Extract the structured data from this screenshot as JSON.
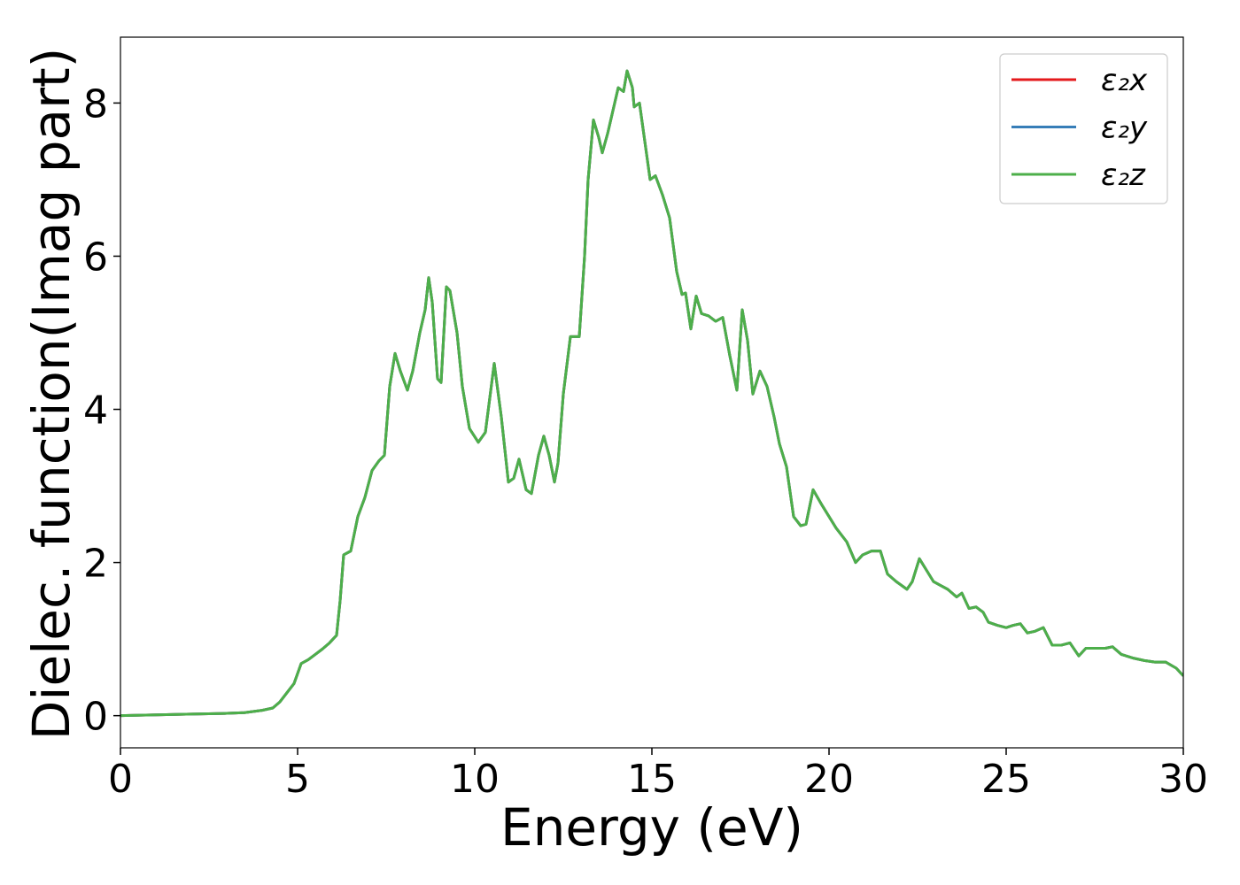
{
  "chart_data": {
    "type": "line",
    "xlabel": "Energy (eV)",
    "ylabel": "Dielec. function(Imag part)",
    "xlim": [
      0,
      30
    ],
    "ylim": [
      -0.42,
      8.86
    ],
    "xticks": [
      0,
      5,
      10,
      15,
      20,
      25,
      30
    ],
    "yticks": [
      0,
      2,
      4,
      6,
      8
    ],
    "legend": "upper right",
    "x": [
      0,
      1,
      2,
      3,
      3.5,
      4,
      4.3,
      4.5,
      4.7,
      4.9,
      5.1,
      5.3,
      5.5,
      5.7,
      5.9,
      6.1,
      6.2,
      6.3,
      6.5,
      6.7,
      6.9,
      7.1,
      7.3,
      7.45,
      7.6,
      7.75,
      7.9,
      8.1,
      8.25,
      8.45,
      8.6,
      8.7,
      8.8,
      8.95,
      9.05,
      9.2,
      9.3,
      9.5,
      9.65,
      9.85,
      10.1,
      10.3,
      10.55,
      10.75,
      10.95,
      11.1,
      11.25,
      11.45,
      11.6,
      11.8,
      11.95,
      12.1,
      12.25,
      12.35,
      12.5,
      12.7,
      12.85,
      12.95,
      13.1,
      13.2,
      13.35,
      13.5,
      13.6,
      13.75,
      13.9,
      14.05,
      14.2,
      14.3,
      14.45,
      14.5,
      14.65,
      14.8,
      14.95,
      15.1,
      15.3,
      15.5,
      15.7,
      15.85,
      15.95,
      16.1,
      16.25,
      16.4,
      16.6,
      16.8,
      17.0,
      17.2,
      17.4,
      17.55,
      17.7,
      17.85,
      18.05,
      18.25,
      18.45,
      18.6,
      18.8,
      19.0,
      19.2,
      19.35,
      19.55,
      19.8,
      20.0,
      20.2,
      20.5,
      20.75,
      20.95,
      21.2,
      21.45,
      21.65,
      21.9,
      22.2,
      22.35,
      22.55,
      22.75,
      22.95,
      23.15,
      23.35,
      23.6,
      23.75,
      23.95,
      24.15,
      24.35,
      24.5,
      24.75,
      25.0,
      25.2,
      25.4,
      25.6,
      25.8,
      26.05,
      26.3,
      26.55,
      26.8,
      27.05,
      27.25,
      27.55,
      27.8,
      28.0,
      28.25,
      28.6,
      28.9,
      29.2,
      29.5,
      29.8,
      30
    ],
    "series": [
      {
        "name": "ε₂x",
        "color": "#e41a1c",
        "values": [
          0,
          0.01,
          0.02,
          0.03,
          0.04,
          0.07,
          0.1,
          0.18,
          0.3,
          0.42,
          0.68,
          0.73,
          0.8,
          0.87,
          0.95,
          1.05,
          1.5,
          2.1,
          2.15,
          2.6,
          2.85,
          3.2,
          3.33,
          3.4,
          4.3,
          4.73,
          4.5,
          4.25,
          4.5,
          5.0,
          5.3,
          5.72,
          5.4,
          4.4,
          4.35,
          5.6,
          5.55,
          5.0,
          4.3,
          3.75,
          3.57,
          3.7,
          4.6,
          3.9,
          3.05,
          3.1,
          3.35,
          2.95,
          2.9,
          3.4,
          3.65,
          3.4,
          3.05,
          3.3,
          4.2,
          4.95,
          4.95,
          4.95,
          6.0,
          7.0,
          7.78,
          7.55,
          7.35,
          7.6,
          7.9,
          8.2,
          8.15,
          8.42,
          8.2,
          7.95,
          8.0,
          7.5,
          7.0,
          7.05,
          6.8,
          6.5,
          5.8,
          5.5,
          5.52,
          5.05,
          5.48,
          5.25,
          5.22,
          5.15,
          5.2,
          4.7,
          4.25,
          5.3,
          4.9,
          4.2,
          4.5,
          4.3,
          3.9,
          3.55,
          3.25,
          2.6,
          2.48,
          2.5,
          2.95,
          2.75,
          2.6,
          2.45,
          2.27,
          2.0,
          2.1,
          2.15,
          2.15,
          1.85,
          1.75,
          1.65,
          1.75,
          2.05,
          1.9,
          1.75,
          1.7,
          1.65,
          1.55,
          1.6,
          1.4,
          1.42,
          1.35,
          1.22,
          1.18,
          1.15,
          1.18,
          1.2,
          1.08,
          1.1,
          1.15,
          0.92,
          0.92,
          0.95,
          0.78,
          0.88,
          0.88,
          0.88,
          0.9,
          0.8,
          0.75,
          0.72,
          0.7,
          0.7,
          0.62,
          0.52
        ]
      },
      {
        "name": "ε₂y",
        "color": "#377eb8",
        "values": [
          0,
          0.01,
          0.02,
          0.03,
          0.04,
          0.07,
          0.1,
          0.18,
          0.3,
          0.42,
          0.68,
          0.73,
          0.8,
          0.87,
          0.95,
          1.05,
          1.5,
          2.1,
          2.15,
          2.6,
          2.85,
          3.2,
          3.33,
          3.4,
          4.3,
          4.73,
          4.5,
          4.25,
          4.5,
          5.0,
          5.3,
          5.72,
          5.4,
          4.4,
          4.35,
          5.6,
          5.55,
          5.0,
          4.3,
          3.75,
          3.57,
          3.7,
          4.6,
          3.9,
          3.05,
          3.1,
          3.35,
          2.95,
          2.9,
          3.4,
          3.65,
          3.4,
          3.05,
          3.3,
          4.2,
          4.95,
          4.95,
          4.95,
          6.0,
          7.0,
          7.78,
          7.55,
          7.35,
          7.6,
          7.9,
          8.2,
          8.15,
          8.42,
          8.2,
          7.95,
          8.0,
          7.5,
          7.0,
          7.05,
          6.8,
          6.5,
          5.8,
          5.5,
          5.52,
          5.05,
          5.48,
          5.25,
          5.22,
          5.15,
          5.2,
          4.7,
          4.25,
          5.3,
          4.9,
          4.2,
          4.5,
          4.3,
          3.9,
          3.55,
          3.25,
          2.6,
          2.48,
          2.5,
          2.95,
          2.75,
          2.6,
          2.45,
          2.27,
          2.0,
          2.1,
          2.15,
          2.15,
          1.85,
          1.75,
          1.65,
          1.75,
          2.05,
          1.9,
          1.75,
          1.7,
          1.65,
          1.55,
          1.6,
          1.4,
          1.42,
          1.35,
          1.22,
          1.18,
          1.15,
          1.18,
          1.2,
          1.08,
          1.1,
          1.15,
          0.92,
          0.92,
          0.95,
          0.78,
          0.88,
          0.88,
          0.88,
          0.9,
          0.8,
          0.75,
          0.72,
          0.7,
          0.7,
          0.62,
          0.52
        ]
      },
      {
        "name": "ε₂z",
        "color": "#4daf4a",
        "values": [
          0,
          0.01,
          0.02,
          0.03,
          0.04,
          0.07,
          0.1,
          0.18,
          0.3,
          0.42,
          0.68,
          0.73,
          0.8,
          0.87,
          0.95,
          1.05,
          1.5,
          2.1,
          2.15,
          2.6,
          2.85,
          3.2,
          3.33,
          3.4,
          4.3,
          4.73,
          4.5,
          4.25,
          4.5,
          5.0,
          5.3,
          5.72,
          5.4,
          4.4,
          4.35,
          5.6,
          5.55,
          5.0,
          4.3,
          3.75,
          3.57,
          3.7,
          4.6,
          3.9,
          3.05,
          3.1,
          3.35,
          2.95,
          2.9,
          3.4,
          3.65,
          3.4,
          3.05,
          3.3,
          4.2,
          4.95,
          4.95,
          4.95,
          6.0,
          7.0,
          7.78,
          7.55,
          7.35,
          7.6,
          7.9,
          8.2,
          8.15,
          8.42,
          8.2,
          7.95,
          8.0,
          7.5,
          7.0,
          7.05,
          6.8,
          6.5,
          5.8,
          5.5,
          5.52,
          5.05,
          5.48,
          5.25,
          5.22,
          5.15,
          5.2,
          4.7,
          4.25,
          5.3,
          4.9,
          4.2,
          4.5,
          4.3,
          3.9,
          3.55,
          3.25,
          2.6,
          2.48,
          2.5,
          2.95,
          2.75,
          2.6,
          2.45,
          2.27,
          2.0,
          2.1,
          2.15,
          2.15,
          1.85,
          1.75,
          1.65,
          1.75,
          2.05,
          1.9,
          1.75,
          1.7,
          1.65,
          1.55,
          1.6,
          1.4,
          1.42,
          1.35,
          1.22,
          1.18,
          1.15,
          1.18,
          1.2,
          1.08,
          1.1,
          1.15,
          0.92,
          0.92,
          0.95,
          0.78,
          0.88,
          0.88,
          0.88,
          0.9,
          0.8,
          0.75,
          0.72,
          0.7,
          0.7,
          0.62,
          0.52
        ]
      }
    ]
  }
}
